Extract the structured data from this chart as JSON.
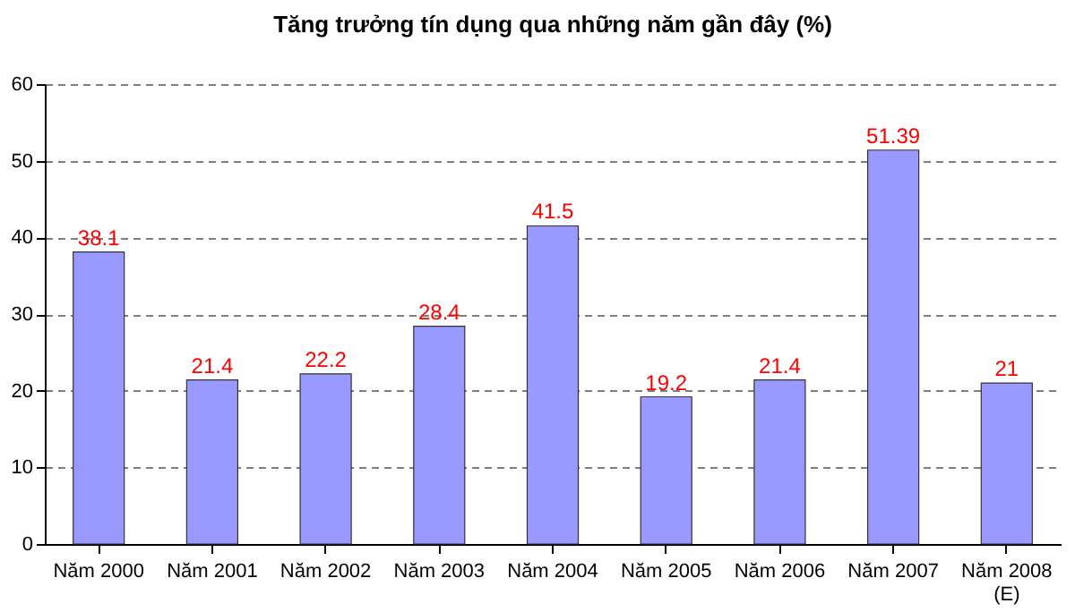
{
  "chart_data": {
    "type": "bar",
    "title": "Tăng trưởng tín dụng qua những năm gần đây (%)",
    "categories": [
      "Năm 2000",
      "Năm 2001",
      "Năm 2002",
      "Năm 2003",
      "Năm 2004",
      "Năm 2005",
      "Năm 2006",
      "Năm 2007",
      "Năm 2008\n(E)"
    ],
    "values": [
      38.1,
      21.4,
      22.2,
      28.4,
      41.5,
      19.2,
      21.4,
      51.39,
      21
    ],
    "color": "#9999ff",
    "ylim": [
      0,
      60
    ],
    "yticks": [
      0,
      10,
      20,
      30,
      40,
      50,
      60
    ],
    "grid": "y",
    "data_labels": true
  }
}
